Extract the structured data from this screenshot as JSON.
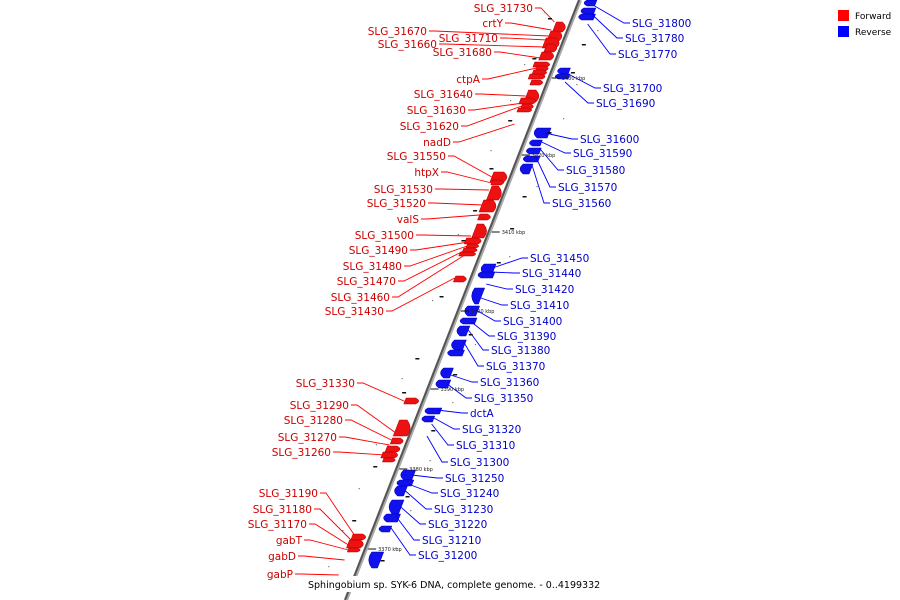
{
  "legend": {
    "forward": {
      "label": "Forward",
      "color": "#ff0000"
    },
    "reverse": {
      "label": "Reverse",
      "color": "#0000ff"
    }
  },
  "caption": "Sphingobium sp. SYK-6 DNA, complete genome. - 0..4199332",
  "ticks": [
    "3430 kbp",
    "3420 kbp",
    "3410 kbp",
    "3400 kbp",
    "3390 kbp",
    "3380 kbp",
    "3370 kbp"
  ],
  "forward_genes": [
    "SLG_31730",
    "crtY",
    "SLG_31670",
    "SLG_31710",
    "SLG_31660",
    "SLG_31680",
    "ctpA",
    "SLG_31640",
    "SLG_31630",
    "SLG_31620",
    "nadD",
    "SLG_31550",
    "htpX",
    "SLG_31530",
    "SLG_31520",
    "valS",
    "SLG_31500",
    "SLG_31490",
    "SLG_31480",
    "SLG_31470",
    "SLG_31460",
    "SLG_31430",
    "SLG_31330",
    "SLG_31290",
    "SLG_31280",
    "SLG_31270",
    "SLG_31260",
    "SLG_31190",
    "SLG_31180",
    "SLG_31170",
    "gabT",
    "gabD",
    "gabP"
  ],
  "reverse_genes": [
    "SLG_31800",
    "SLG_31780",
    "SLG_31770",
    "SLG_31700",
    "SLG_31690",
    "SLG_31600",
    "SLG_31590",
    "SLG_31580",
    "SLG_31570",
    "SLG_31560",
    "SLG_31450",
    "SLG_31440",
    "SLG_31420",
    "SLG_31410",
    "SLG_31400",
    "SLG_31390",
    "SLG_31380",
    "SLG_31370",
    "SLG_31360",
    "SLG_31350",
    "dctA",
    "SLG_31320",
    "SLG_31310",
    "SLG_31300",
    "SLG_31250",
    "SLG_31240",
    "SLG_31230",
    "SLG_31220",
    "SLG_31210",
    "SLG_31200"
  ]
}
